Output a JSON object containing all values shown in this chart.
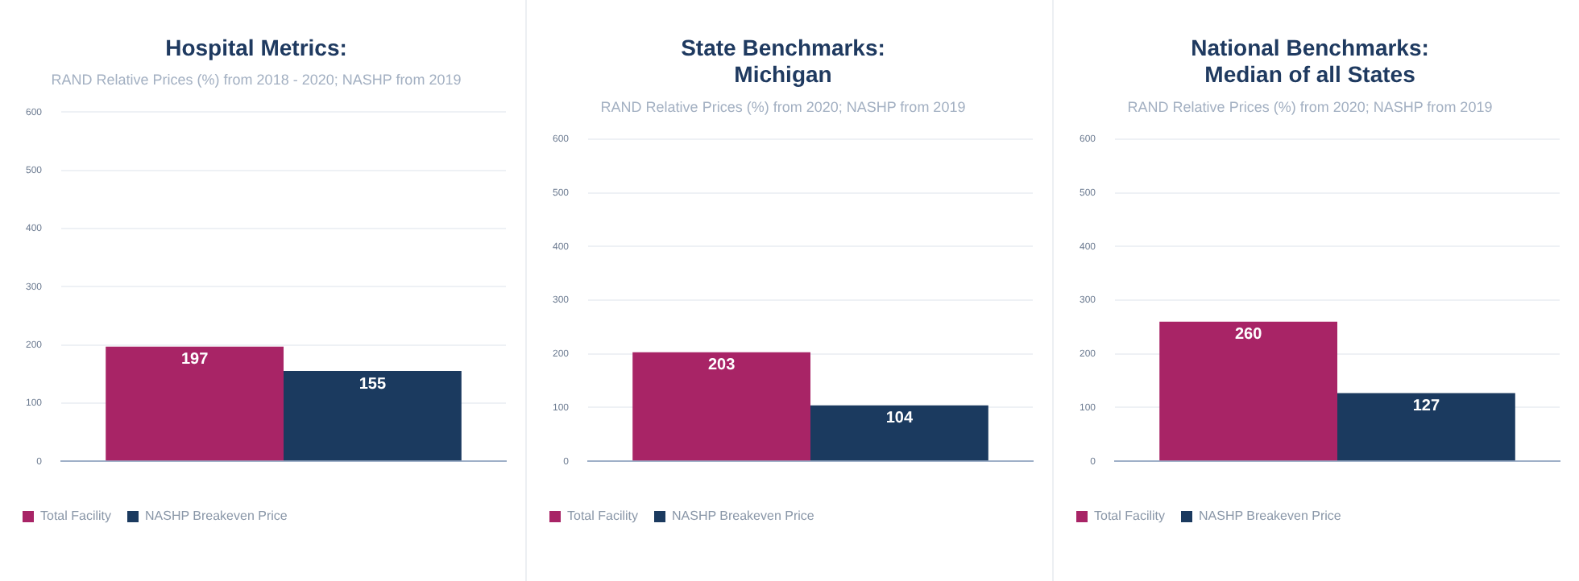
{
  "chart_data": [
    {
      "type": "bar",
      "title": "Hospital Metrics:",
      "subtitle": "RAND Relative Prices (%) from 2018 - 2020; NASHP from 2019",
      "categories": [
        null
      ],
      "series": [
        {
          "name": "Total Facility",
          "color": "#a82466",
          "values": [
            197
          ]
        },
        {
          "name": "NASHP Breakeven Price",
          "color": "#1b3a5f",
          "values": [
            155
          ]
        }
      ],
      "ylim": [
        0,
        600
      ],
      "yticks": [
        0,
        100,
        200,
        300,
        400,
        500,
        600
      ],
      "grid": "y",
      "legend": "bottom left",
      "data_labels": true
    },
    {
      "type": "bar",
      "title": "State Benchmarks:\nMichigan",
      "subtitle": "RAND Relative Prices (%) from 2020; NASHP from 2019",
      "categories": [
        null
      ],
      "series": [
        {
          "name": "Total Facility",
          "color": "#a82466",
          "values": [
            203
          ]
        },
        {
          "name": "NASHP Breakeven Price",
          "color": "#1b3a5f",
          "values": [
            104
          ]
        }
      ],
      "ylim": [
        0,
        600
      ],
      "yticks": [
        0,
        100,
        200,
        300,
        400,
        500,
        600
      ],
      "grid": "y",
      "legend": "bottom left",
      "data_labels": true
    },
    {
      "type": "bar",
      "title": "National Benchmarks:\nMedian of all States",
      "subtitle": "RAND Relative Prices (%) from 2020; NASHP from 2019",
      "categories": [
        null
      ],
      "series": [
        {
          "name": "Total Facility",
          "color": "#a82466",
          "values": [
            260
          ]
        },
        {
          "name": "NASHP Breakeven Price",
          "color": "#1b3a5f",
          "values": [
            127
          ]
        }
      ],
      "ylim": [
        0,
        600
      ],
      "yticks": [
        0,
        100,
        200,
        300,
        400,
        500,
        600
      ],
      "grid": "y",
      "legend": "bottom left",
      "data_labels": true
    }
  ]
}
